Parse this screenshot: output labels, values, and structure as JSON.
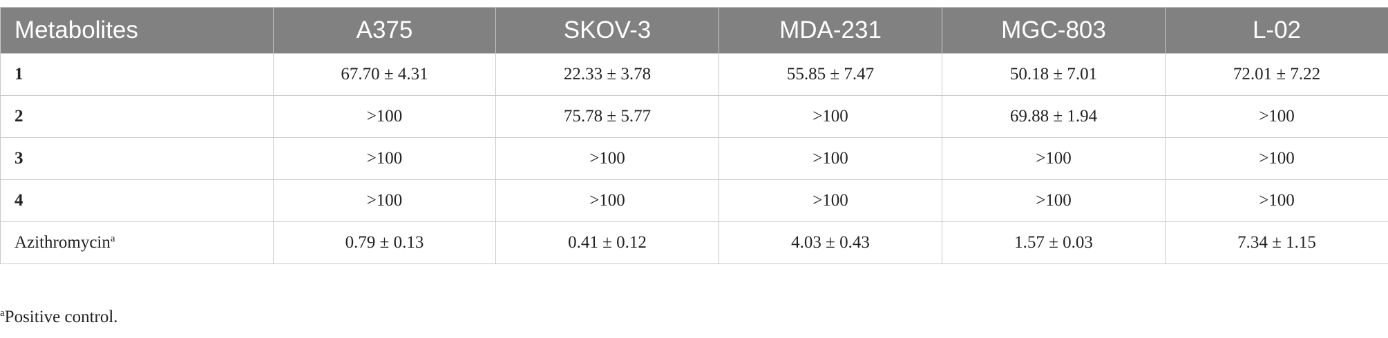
{
  "table": {
    "header": [
      "Metabolites",
      "A375",
      "SKOV-3",
      "MDA-231",
      "MGC-803",
      "L-02"
    ],
    "rows": [
      {
        "label": "1",
        "values": [
          "67.70 ± 4.31",
          "22.33 ± 3.78",
          "55.85 ± 7.47",
          "50.18 ± 7.01",
          "72.01 ± 7.22"
        ]
      },
      {
        "label": "2",
        "values": [
          ">100",
          "75.78 ± 5.77",
          ">100",
          "69.88 ± 1.94",
          ">100"
        ]
      },
      {
        "label": "3",
        "values": [
          ">100",
          ">100",
          ">100",
          ">100",
          ">100"
        ]
      },
      {
        "label": "4",
        "values": [
          ">100",
          ">100",
          ">100",
          ">100",
          ">100"
        ]
      },
      {
        "label": "Azithromycin",
        "label_sup": "a",
        "values": [
          "0.79 ± 0.13",
          "0.41 ± 0.12",
          "4.03 ± 0.43",
          "1.57 ± 0.03",
          "7.34 ± 1.15"
        ]
      }
    ]
  },
  "footnote": {
    "mark": "a",
    "text": "Positive control."
  }
}
